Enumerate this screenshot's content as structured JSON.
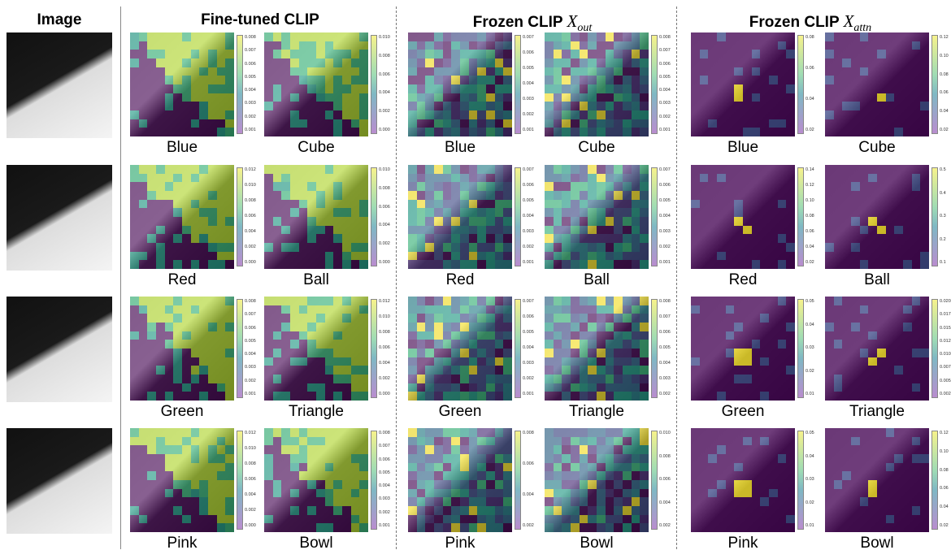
{
  "header": {
    "image": "Image",
    "columns": [
      {
        "title": "Fine-tuned CLIP"
      },
      {
        "title": "Frozen CLIP",
        "var": "X",
        "sub": "out"
      },
      {
        "title": "Frozen CLIP",
        "var": "X",
        "sub": "attn"
      }
    ]
  },
  "rows": [
    {
      "panels": [
        {
          "caption": "Blue",
          "ticks": [
            "0.008",
            "0.007",
            "0.006",
            "0.005",
            "0.004",
            "0.003",
            "0.002",
            "0.001"
          ]
        },
        {
          "caption": "Cube",
          "ticks": [
            "0.010",
            "0.008",
            "0.006",
            "0.004",
            "0.002",
            "0.000"
          ]
        },
        {
          "caption": "Blue",
          "ticks": [
            "0.007",
            "0.006",
            "0.005",
            "0.004",
            "0.003",
            "0.002",
            "0.001"
          ]
        },
        {
          "caption": "Cube",
          "ticks": [
            "0.008",
            "0.007",
            "0.006",
            "0.005",
            "0.004",
            "0.003",
            "0.002",
            "0.001"
          ]
        },
        {
          "caption": "Blue",
          "ticks": [
            "0.08",
            "0.06",
            "0.04",
            "0.02"
          ]
        },
        {
          "caption": "Cube",
          "ticks": [
            "0.12",
            "0.10",
            "0.08",
            "0.06",
            "0.04",
            "0.02"
          ]
        }
      ]
    },
    {
      "panels": [
        {
          "caption": "Red",
          "ticks": [
            "0.012",
            "0.010",
            "0.008",
            "0.006",
            "0.004",
            "0.002",
            "0.000"
          ]
        },
        {
          "caption": "Ball",
          "ticks": [
            "0.010",
            "0.008",
            "0.006",
            "0.004",
            "0.002",
            "0.000"
          ]
        },
        {
          "caption": "Red",
          "ticks": [
            "0.007",
            "0.006",
            "0.005",
            "0.004",
            "0.003",
            "0.002",
            "0.001"
          ]
        },
        {
          "caption": "Ball",
          "ticks": [
            "0.007",
            "0.006",
            "0.005",
            "0.004",
            "0.003",
            "0.002",
            "0.001"
          ]
        },
        {
          "caption": "Red",
          "ticks": [
            "0.14",
            "0.12",
            "0.10",
            "0.08",
            "0.06",
            "0.04",
            "0.02"
          ]
        },
        {
          "caption": "Ball",
          "ticks": [
            "0.5",
            "0.4",
            "0.3",
            "0.2",
            "0.1"
          ]
        }
      ]
    },
    {
      "panels": [
        {
          "caption": "Green",
          "ticks": [
            "0.008",
            "0.007",
            "0.006",
            "0.005",
            "0.004",
            "0.003",
            "0.002",
            "0.001"
          ]
        },
        {
          "caption": "Triangle",
          "ticks": [
            "0.012",
            "0.010",
            "0.008",
            "0.006",
            "0.004",
            "0.002",
            "0.000"
          ]
        },
        {
          "caption": "Green",
          "ticks": [
            "0.007",
            "0.006",
            "0.005",
            "0.004",
            "0.003",
            "0.002",
            "0.001"
          ]
        },
        {
          "caption": "Triangle",
          "ticks": [
            "0.008",
            "0.007",
            "0.006",
            "0.005",
            "0.004",
            "0.003",
            "0.002"
          ]
        },
        {
          "caption": "Green",
          "ticks": [
            "0.05",
            "0.04",
            "0.03",
            "0.02",
            "0.01"
          ]
        },
        {
          "caption": "Triangle",
          "ticks": [
            "0.020",
            "0.017",
            "0.015",
            "0.012",
            "0.010",
            "0.007",
            "0.005",
            "0.002"
          ]
        }
      ]
    },
    {
      "panels": [
        {
          "caption": "Pink",
          "ticks": [
            "0.012",
            "0.010",
            "0.008",
            "0.006",
            "0.004",
            "0.002",
            "0.000"
          ]
        },
        {
          "caption": "Bowl",
          "ticks": [
            "0.008",
            "0.007",
            "0.006",
            "0.005",
            "0.004",
            "0.003",
            "0.002",
            "0.001"
          ]
        },
        {
          "caption": "Pink",
          "ticks": [
            "0.008",
            "0.006",
            "0.004",
            "0.002"
          ]
        },
        {
          "caption": "Bowl",
          "ticks": [
            "0.010",
            "0.008",
            "0.006",
            "0.004",
            "0.002"
          ]
        },
        {
          "caption": "Pink",
          "ticks": [
            "0.05",
            "0.04",
            "0.03",
            "0.02",
            "0.01"
          ]
        },
        {
          "caption": "Bowl",
          "ticks": [
            "0.12",
            "0.10",
            "0.08",
            "0.06",
            "0.04",
            "0.02"
          ]
        }
      ]
    }
  ]
}
